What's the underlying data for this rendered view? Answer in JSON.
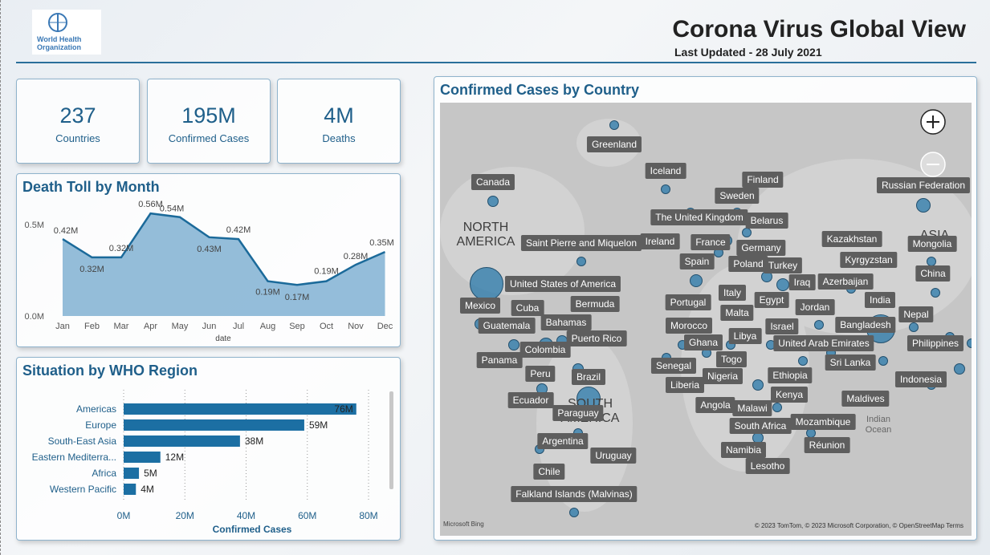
{
  "header": {
    "logo_text": "World Health Organization",
    "title": "Corona Virus Global View",
    "subtitle": "Last Updated - 28 July 2021"
  },
  "kpis": [
    {
      "value": "237",
      "label": "Countries"
    },
    {
      "value": "195M",
      "label": "Confirmed Cases"
    },
    {
      "value": "4M",
      "label": "Deaths"
    }
  ],
  "map": {
    "title": "Confirmed Cases by Country",
    "country_labels": [
      "Greenland",
      "Canada",
      "Iceland",
      "Finland",
      "Sweden",
      "Russian Federation",
      "The United Kingdom",
      "Belarus",
      "Saint Pierre and Miquelon",
      "Ireland",
      "France",
      "Germany",
      "Kazakhstan",
      "Mongolia",
      "Spain",
      "Poland",
      "Turkey",
      "Kyrgyzstan",
      "China",
      "United States of America",
      "Iraq",
      "Azerbaijan",
      "Mexico",
      "Cuba",
      "Bermuda",
      "Italy",
      "Portugal",
      "Egypt",
      "Jordan",
      "India",
      "Malta",
      "Nepal",
      "Bahamas",
      "Guatemala",
      "Morocco",
      "Israel",
      "Bangladesh",
      "Libya",
      "Puerto Rico",
      "United Arab Emirates",
      "Philippines",
      "Colombia",
      "Ghana",
      "Togo",
      "Panama",
      "Senegal",
      "Sri Lanka",
      "Peru",
      "Brazil",
      "Nigeria",
      "Ethiopia",
      "Indonesia",
      "Liberia",
      "Kenya",
      "Ecuador",
      "Maldives",
      "Angola",
      "Malawi",
      "Paraguay",
      "Mozambique",
      "South Africa",
      "Argentina",
      "Réunion",
      "Namibia",
      "Uruguay",
      "Lesotho",
      "Chile",
      "Falkland Islands (Malvinas)"
    ],
    "region_labels": [
      "NORTH AMERICA",
      "ASIA",
      "SOUTH AMERICA",
      "Indian Ocean"
    ],
    "attribution_left": "Microsoft Bing",
    "attribution_right": "© 2023 TomTom, © 2023 Microsoft Corporation, © OpenStreetMap  Terms"
  },
  "chart_data": [
    {
      "type": "area",
      "title": "Death Toll by Month",
      "categories": [
        "Jan",
        "Feb",
        "Mar",
        "Apr",
        "May",
        "Jun",
        "Jul",
        "Aug",
        "Sep",
        "Oct",
        "Nov",
        "Dec"
      ],
      "values": [
        0.42,
        0.32,
        0.32,
        0.56,
        0.54,
        0.43,
        0.42,
        0.19,
        0.17,
        0.19,
        0.28,
        0.35
      ],
      "value_labels": [
        "0.42M",
        "0.32M",
        "0.32M",
        "0.56M",
        "0.54M",
        "0.43M",
        "0.42M",
        "0.19M",
        "0.17M",
        "0.19M",
        "0.28M",
        "0.35M"
      ],
      "x_label": "date",
      "ylim": [
        0,
        0.6
      ],
      "yticks": [
        {
          "value": 0,
          "label": "0.0M"
        },
        {
          "value": 0.5,
          "label": "0.5M"
        }
      ],
      "color": "#1b6a9a"
    },
    {
      "type": "hbar",
      "title": "Situation by WHO Region",
      "categories": [
        "Americas",
        "Europe",
        "South-East Asia",
        "Eastern Mediterra...",
        "Africa",
        "Western Pacific"
      ],
      "values": [
        76,
        59,
        38,
        12,
        5,
        4
      ],
      "value_labels": [
        "76M",
        "59M",
        "38M",
        "12M",
        "5M",
        "4M"
      ],
      "x_label": "Confirmed Cases",
      "xlim": [
        0,
        80
      ],
      "xticks": [
        {
          "value": 0,
          "label": "0M"
        },
        {
          "value": 20,
          "label": "20M"
        },
        {
          "value": 40,
          "label": "40M"
        },
        {
          "value": 60,
          "label": "60M"
        },
        {
          "value": 80,
          "label": "80M"
        }
      ],
      "color": "#1c6fa3",
      "grid": true
    }
  ]
}
